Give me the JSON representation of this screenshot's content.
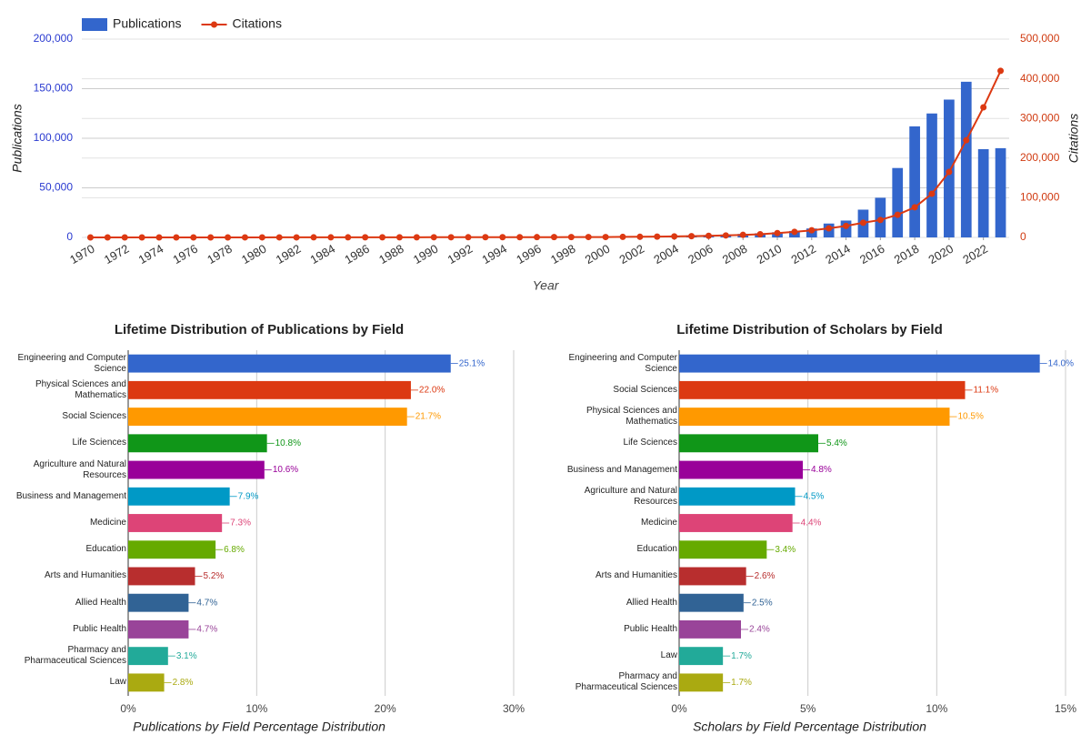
{
  "chart_data": [
    {
      "type": "combo",
      "x": [
        1970,
        1971,
        1972,
        1973,
        1974,
        1975,
        1976,
        1977,
        1978,
        1979,
        1980,
        1981,
        1982,
        1983,
        1984,
        1985,
        1986,
        1987,
        1988,
        1989,
        1990,
        1991,
        1992,
        1993,
        1994,
        1995,
        1996,
        1997,
        1998,
        1999,
        2000,
        2001,
        2002,
        2003,
        2004,
        2005,
        2006,
        2007,
        2008,
        2009,
        2010,
        2011,
        2012,
        2013,
        2014,
        2015,
        2016,
        2017,
        2018,
        2019,
        2020,
        2021,
        2022,
        2023
      ],
      "series": [
        {
          "name": "Publications",
          "type": "bar",
          "color": "#3366cc",
          "values": [
            100,
            110,
            120,
            130,
            140,
            150,
            160,
            170,
            190,
            200,
            210,
            230,
            250,
            270,
            290,
            310,
            330,
            350,
            380,
            400,
            430,
            460,
            500,
            540,
            580,
            620,
            670,
            720,
            780,
            850,
            950,
            1050,
            1200,
            1400,
            1700,
            2000,
            2400,
            2900,
            3500,
            4200,
            5200,
            6500,
            9000,
            14000,
            17000,
            28000,
            40000,
            70000,
            112000,
            125000,
            139000,
            157000,
            89000,
            90000
          ]
        },
        {
          "name": "Citations",
          "type": "line",
          "axis": "y2",
          "color": "#dc3912",
          "values": [
            20,
            25,
            30,
            35,
            40,
            50,
            60,
            70,
            80,
            90,
            100,
            120,
            140,
            160,
            180,
            200,
            230,
            260,
            300,
            340,
            380,
            420,
            470,
            520,
            580,
            650,
            720,
            800,
            880,
            950,
            1000,
            1300,
            1600,
            2000,
            2500,
            3200,
            4000,
            5000,
            6500,
            8000,
            11000,
            14000,
            18000,
            23000,
            29000,
            37000,
            44000,
            57000,
            76000,
            110000,
            165000,
            245000,
            328000,
            420000
          ]
        }
      ],
      "xticks": [
        1970,
        1972,
        1974,
        1976,
        1978,
        1980,
        1982,
        1984,
        1986,
        1988,
        1990,
        1992,
        1994,
        1996,
        1998,
        2000,
        2002,
        2004,
        2006,
        2008,
        2010,
        2012,
        2014,
        2016,
        2018,
        2020,
        2022
      ],
      "ylim": [
        0,
        200000
      ],
      "yticks": [
        0,
        {
          "value": 50000,
          "label": "50,000"
        },
        {
          "value": 100000,
          "label": "100,000"
        },
        {
          "value": 150000,
          "label": "150,000"
        },
        {
          "value": 200000,
          "label": "200,000"
        }
      ],
      "y2lim": [
        0,
        500000
      ],
      "y2ticks": [
        0,
        {
          "value": 100000,
          "label": "100,000"
        },
        {
          "value": 200000,
          "label": "200,000"
        },
        {
          "value": 300000,
          "label": "300,000"
        },
        {
          "value": 400000,
          "label": "400,000"
        },
        {
          "value": 500000,
          "label": "500,000"
        }
      ],
      "xlabel": "Year",
      "ylabel": "Publications",
      "y2label": "Citations",
      "legend": "top-left",
      "grid": true
    },
    {
      "type": "hbar",
      "title": "Lifetime Distribution of Publications by Field",
      "categories": [
        "Engineering and Computer Science",
        "Physical Sciences and Mathematics",
        "Social Sciences",
        "Life Sciences",
        "Agriculture and Natural Resources",
        "Business and Management",
        "Medicine",
        "Education",
        "Arts and Humanities",
        "Allied Health",
        "Public Health",
        "Pharmacy and Pharmaceutical Sciences",
        "Law"
      ],
      "values": [
        25.1,
        22.0,
        21.7,
        10.8,
        10.6,
        7.9,
        7.3,
        6.8,
        5.2,
        4.7,
        4.7,
        3.1,
        2.8
      ],
      "value_labels": [
        "25.1%",
        "22.0%",
        "21.7%",
        "10.8%",
        "10.6%",
        "7.9%",
        "7.3%",
        "6.8%",
        "5.2%",
        "4.7%",
        "4.7%",
        "3.1%",
        "2.8%"
      ],
      "colors": [
        "#3366cc",
        "#dc3912",
        "#ff9900",
        "#109618",
        "#990099",
        "#0099c6",
        "#dd4477",
        "#66aa00",
        "#b82e2e",
        "#316395",
        "#994499",
        "#22aa99",
        "#aaaa11"
      ],
      "xlim": [
        0,
        30
      ],
      "xticks": [
        {
          "value": 0,
          "label": "0%"
        },
        {
          "value": 10,
          "label": "10%"
        },
        {
          "value": 20,
          "label": "20%"
        },
        {
          "value": 30,
          "label": "30%"
        }
      ],
      "xlabel": "Publications by Field Percentage Distribution",
      "grid": true
    },
    {
      "type": "hbar",
      "title": "Lifetime Distribution of Scholars by Field",
      "categories": [
        "Engineering and Computer Science",
        "Social Sciences",
        "Physical Sciences and Mathematics",
        "Life Sciences",
        "Business and Management",
        "Agriculture and Natural Resources",
        "Medicine",
        "Education",
        "Arts and Humanities",
        "Allied Health",
        "Public Health",
        "Law",
        "Pharmacy and Pharmaceutical Sciences"
      ],
      "values": [
        14.0,
        11.1,
        10.5,
        5.4,
        4.8,
        4.5,
        4.4,
        3.4,
        2.6,
        2.5,
        2.4,
        1.7,
        1.7
      ],
      "value_labels": [
        "14.0%",
        "11.1%",
        "10.5%",
        "5.4%",
        "4.8%",
        "4.5%",
        "4.4%",
        "3.4%",
        "2.6%",
        "2.5%",
        "2.4%",
        "1.7%",
        "1.7%"
      ],
      "colors": [
        "#3366cc",
        "#dc3912",
        "#ff9900",
        "#109618",
        "#990099",
        "#0099c6",
        "#dd4477",
        "#66aa00",
        "#b82e2e",
        "#316395",
        "#994499",
        "#22aa99",
        "#aaaa11"
      ],
      "xlim": [
        0,
        15
      ],
      "xticks": [
        {
          "value": 0,
          "label": "0%"
        },
        {
          "value": 5,
          "label": "5%"
        },
        {
          "value": 10,
          "label": "10%"
        },
        {
          "value": 15,
          "label": "15%"
        }
      ],
      "xlabel": "Scholars by Field Percentage Distribution",
      "grid": true
    }
  ]
}
